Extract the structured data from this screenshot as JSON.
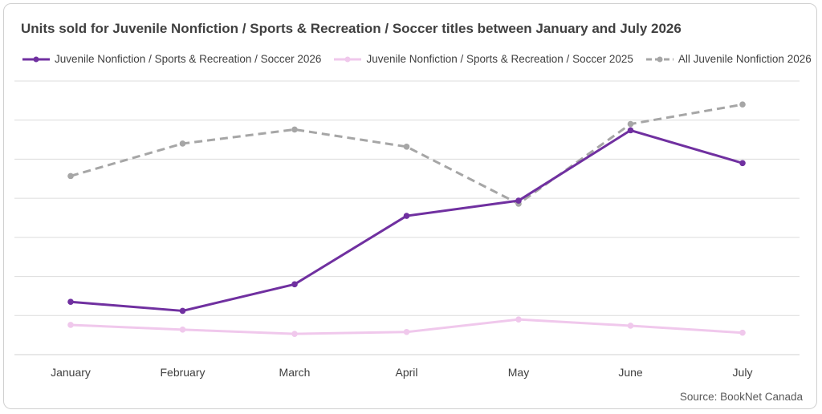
{
  "title": "Units sold for Juvenile Nonfiction / Sports & Recreation / Soccer titles between January and July 2026",
  "source": "Source: BookNet Canada",
  "chart_data": {
    "type": "line",
    "title": "Units sold for Juvenile Nonfiction / Sports & Recreation / Soccer titles between January and July 2026",
    "categories": [
      "January",
      "February",
      "March",
      "April",
      "May",
      "June",
      "July"
    ],
    "ylim": [
      0,
      70
    ],
    "grid": true,
    "legend_position": "top",
    "y_axis_labels_shown": false,
    "series": [
      {
        "name": "Juvenile Nonfiction / Sports & Recreation / Soccer 2026",
        "color": "#7030a0",
        "dash": "solid",
        "values": [
          13.5,
          11.2,
          18.0,
          35.5,
          39.4,
          57.4,
          49.0
        ]
      },
      {
        "name": "Juvenile Nonfiction / Sports & Recreation / Soccer 2025",
        "color": "#f0c8ec",
        "dash": "solid",
        "values": [
          7.6,
          6.4,
          5.3,
          5.8,
          9.0,
          7.4,
          5.6
        ]
      },
      {
        "name": "All Juvenile Nonfiction 2026",
        "color": "#a6a6a6",
        "dash": "dashed",
        "values": [
          45.7,
          54.0,
          57.6,
          53.2,
          38.6,
          59.0,
          64.0
        ]
      }
    ]
  }
}
